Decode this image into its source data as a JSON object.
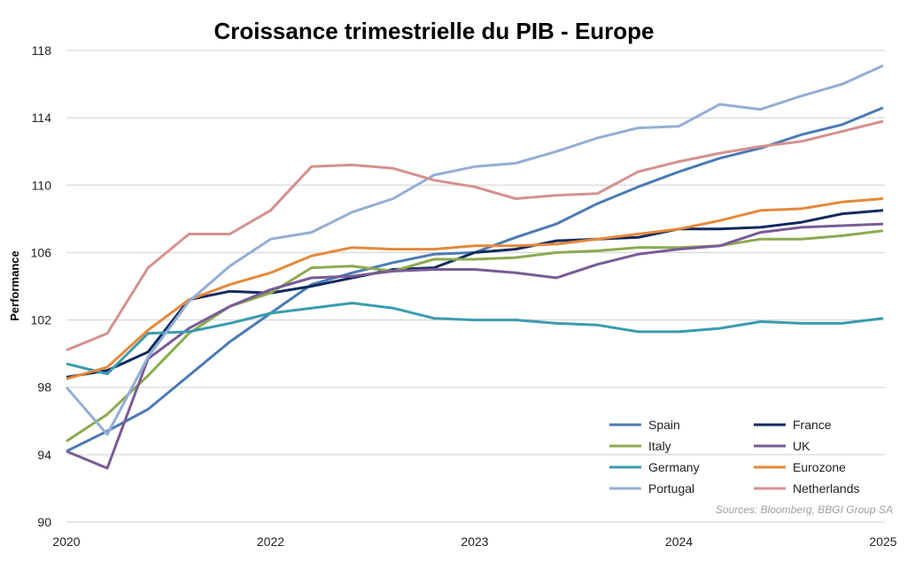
{
  "chart_data": {
    "type": "line",
    "title": "Croissance trimestrielle du PIB - Europe",
    "xlabel": "",
    "ylabel": "Performance",
    "source": "Sources: Bloomberg, BBGI Group SA",
    "ylim": [
      90,
      118
    ],
    "yticks": [
      90,
      94,
      98,
      102,
      106,
      110,
      114,
      118
    ],
    "x_tick_labels": [
      {
        "index": 0,
        "label": "2020"
      },
      {
        "index": 5,
        "label": "2022"
      },
      {
        "index": 10,
        "label": "2023"
      },
      {
        "index": 15,
        "label": "2024"
      },
      {
        "index": 20,
        "label": "2025"
      }
    ],
    "grid": "horizontal",
    "legend_position": "bottom-right",
    "series": [
      {
        "name": "Spain",
        "color": "#4a7ab4",
        "values": [
          94.2,
          95.4,
          96.7,
          98.7,
          100.7,
          102.4,
          104.1,
          104.8,
          105.4,
          105.9,
          106.0,
          106.9,
          107.7,
          108.9,
          109.9,
          110.8,
          111.6,
          112.2,
          113.0,
          113.6,
          114.6
        ]
      },
      {
        "name": "France",
        "color": "#0f2a5e",
        "values": [
          98.6,
          99.0,
          100.1,
          103.2,
          103.7,
          103.6,
          104.0,
          104.5,
          105.0,
          105.1,
          106.0,
          106.2,
          106.7,
          106.8,
          106.9,
          107.4,
          107.4,
          107.5,
          107.8,
          108.3,
          108.5
        ]
      },
      {
        "name": "Italy",
        "color": "#8aab4f",
        "values": [
          94.8,
          96.4,
          98.7,
          101.2,
          102.8,
          103.6,
          105.1,
          105.2,
          104.9,
          105.6,
          105.6,
          105.7,
          106.0,
          106.1,
          106.3,
          106.3,
          106.4,
          106.8,
          106.8,
          107.0,
          107.3
        ]
      },
      {
        "name": "UK",
        "color": "#7a5a96",
        "values": [
          94.2,
          93.2,
          99.7,
          101.5,
          102.8,
          103.8,
          104.5,
          104.6,
          104.9,
          105.0,
          105.0,
          104.8,
          104.5,
          105.3,
          105.9,
          106.2,
          106.4,
          107.2,
          107.5,
          107.6,
          107.7
        ]
      },
      {
        "name": "Germany",
        "color": "#3b9bb0",
        "values": [
          99.4,
          98.8,
          101.2,
          101.3,
          101.8,
          102.4,
          102.7,
          103.0,
          102.7,
          102.1,
          102.0,
          102.0,
          101.8,
          101.7,
          101.3,
          101.3,
          101.5,
          101.9,
          101.8,
          101.8,
          102.1
        ]
      },
      {
        "name": "Eurozone",
        "color": "#e5893a",
        "values": [
          98.5,
          99.2,
          101.4,
          103.2,
          104.1,
          104.8,
          105.8,
          106.3,
          106.2,
          106.2,
          106.4,
          106.4,
          106.5,
          106.8,
          107.1,
          107.4,
          107.9,
          108.5,
          108.6,
          109.0,
          109.2
        ]
      },
      {
        "name": "Portugal",
        "color": "#93aed6",
        "values": [
          98.0,
          95.2,
          99.8,
          103.1,
          105.2,
          106.8,
          107.2,
          108.4,
          109.2,
          110.6,
          111.1,
          111.3,
          112.0,
          112.8,
          113.4,
          113.5,
          114.8,
          114.5,
          115.3,
          116.0,
          117.1
        ]
      },
      {
        "name": "Netherlands",
        "color": "#d4918f",
        "values": [
          100.2,
          101.2,
          105.1,
          107.1,
          107.1,
          108.5,
          111.1,
          111.2,
          111.0,
          110.3,
          109.9,
          109.2,
          109.4,
          109.5,
          110.8,
          111.4,
          111.9,
          112.3,
          112.6,
          113.2,
          113.8
        ]
      }
    ]
  }
}
